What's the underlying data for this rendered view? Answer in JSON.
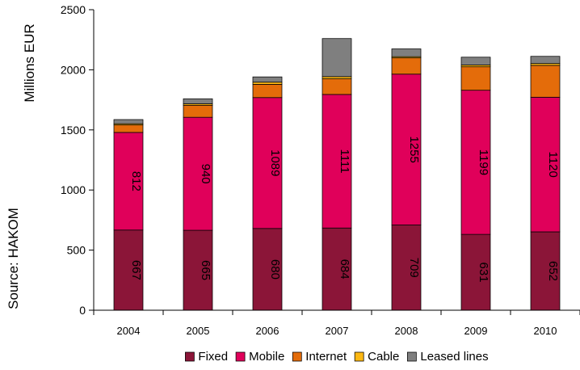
{
  "chart_data": {
    "type": "bar",
    "stacked": true,
    "categories": [
      "2004",
      "2005",
      "2006",
      "2007",
      "2008",
      "2009",
      "2010"
    ],
    "series": [
      {
        "name": "Fixed",
        "color": "#8b1538",
        "values": [
          667,
          665,
          680,
          684,
          709,
          631,
          652
        ],
        "show_labels": true
      },
      {
        "name": "Mobile",
        "color": "#e0005a",
        "values": [
          812,
          940,
          1089,
          1111,
          1255,
          1199,
          1120
        ],
        "show_labels": true
      },
      {
        "name": "Internet",
        "color": "#e46c0a",
        "values": [
          62,
          100,
          110,
          130,
          135,
          195,
          265
        ],
        "show_labels": false
      },
      {
        "name": "Cable",
        "color": "#fcb813",
        "values": [
          10,
          12,
          18,
          18,
          10,
          15,
          15
        ],
        "show_labels": false
      },
      {
        "name": "Leased lines",
        "color": "#7f7f7f",
        "values": [
          35,
          42,
          44,
          317,
          65,
          65,
          60
        ],
        "show_labels": false
      }
    ],
    "ylabel": "Millions EUR",
    "ylim": [
      0,
      2500
    ],
    "yticks": [
      0,
      500,
      1000,
      1500,
      2000,
      2500
    ],
    "grid": false,
    "legend_position": "bottom",
    "side_note": "Source: HAKOM"
  }
}
